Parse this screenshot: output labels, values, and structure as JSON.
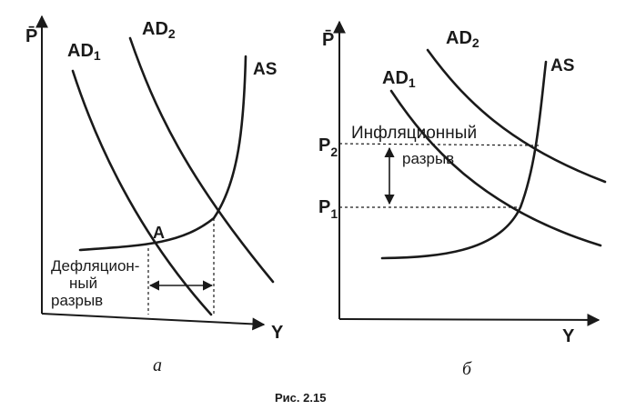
{
  "left": {
    "y_axis": "P̄",
    "x_axis": "Y",
    "ad1": "AD",
    "ad1_sub": "1",
    "ad2": "AD",
    "ad2_sub": "2",
    "as": "AS",
    "point_a": "A",
    "gap_line1": "Дефляцион-",
    "gap_line2": "ный",
    "gap_line3": "разрыв",
    "caption": "а"
  },
  "right": {
    "y_axis": "P̄",
    "x_axis": "Y",
    "ad1": "AD",
    "ad1_sub": "1",
    "ad2": "AD",
    "ad2_sub": "2",
    "as": "AS",
    "p2": "P",
    "p2_sub": "2",
    "p1": "P",
    "p1_sub": "1",
    "gap_line1": "Инфляционный",
    "gap_line2": "разрыв",
    "caption": "б"
  },
  "figure_caption": "Рис. 2.15"
}
